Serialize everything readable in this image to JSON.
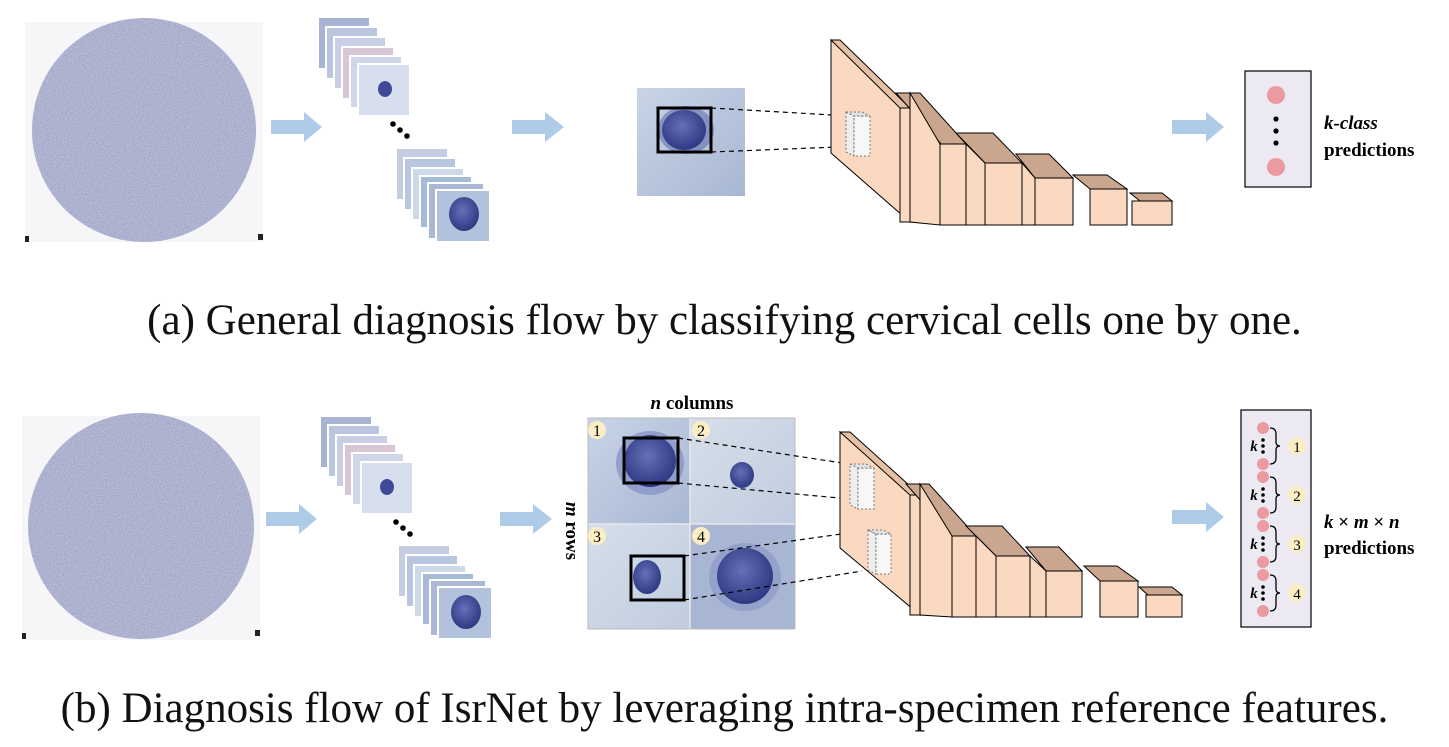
{
  "panel_a": {
    "caption": "(a) General diagnosis flow by classifying cervical cells one by one.",
    "output_label_line1": "k-class",
    "output_label_line2": "predictions",
    "dots": "•••"
  },
  "panel_b": {
    "caption": "(b) Diagnosis flow of IsrNet by leveraging intra-specimen reference features.",
    "grid_top_label_var": "n",
    "grid_top_label_text": " columns",
    "grid_side_label_var": "m",
    "grid_side_label_text": " rows",
    "tile_numbers": [
      "1",
      "2",
      "3",
      "4"
    ],
    "group_k_label": "k",
    "group_numbers": [
      "1",
      "2",
      "3",
      "4"
    ],
    "output_label_line1_k": "k",
    "output_label_line1_times1": " × ",
    "output_label_line1_m": "m",
    "output_label_line1_times2": " × ",
    "output_label_line1_n": "n",
    "output_label_line2": "predictions",
    "dots": "•••"
  },
  "colors": {
    "arrow": "#aecbe8",
    "block_front": "#fbd9c0",
    "block_side": "#caa68e",
    "block_top": "#e6c0a5",
    "pred_box_fill": "#ece9f3",
    "pred_dot": "#ea9aa0",
    "number_badge": "#fbeec4",
    "specimen": "#b9bdd8",
    "cell_bg": "#b8c8de",
    "nucleus": "#3e4a98"
  }
}
